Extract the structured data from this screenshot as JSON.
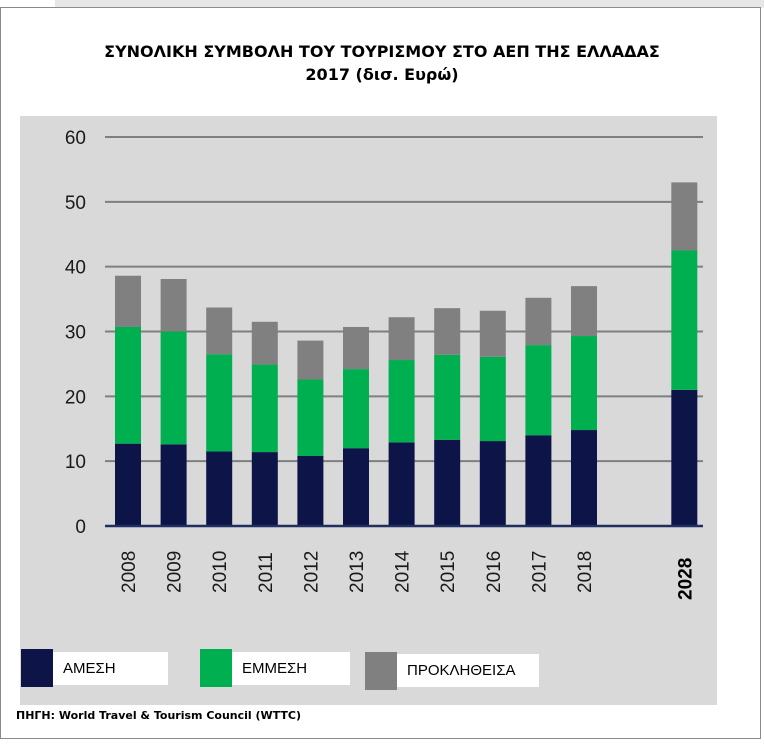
{
  "title_lines": [
    "ΣΥΝΟΛΙΚΗ ΣΥΜΒΟΛΗ ΤΟΥ ΤΟΥΡΙΣΜΟΥ ΣΤΟ ΑΕΠ ΤΗΣ ΕΛΛΑΔΑΣ",
    "2017 (δισ. Ευρώ)"
  ],
  "source": "ΠΗΓΗ: World Travel & Tourism Council (WTTC)",
  "colors": {
    "direct": "#0c1448",
    "indirect": "#00b050",
    "induced": "#808080",
    "grid": "#7f7f7f",
    "axis": "#1f2f5f"
  },
  "chart_data": {
    "type": "bar",
    "stacked": true,
    "title": "ΣΥΝΟΛΙΚΗ ΣΥΜΒΟΛΗ ΤΟΥ ΤΟΥΡΙΣΜΟΥ ΣΤΟ ΑΕΠ ΤΗΣ ΕΛΛΑΔΑΣ 2017 (δισ. Ευρώ)",
    "categories": [
      "2008",
      "2009",
      "2010",
      "2011",
      "2012",
      "2013",
      "2014",
      "2015",
      "2016",
      "2017",
      "2018",
      "2028"
    ],
    "highlight_category": "2028",
    "series": [
      {
        "name": "ΑΜΕΣΗ",
        "values": [
          12.7,
          12.6,
          11.5,
          11.4,
          10.8,
          12.0,
          12.9,
          13.3,
          13.1,
          14.0,
          14.8,
          21.0
        ]
      },
      {
        "name": "ΕΜΜΕΣΗ",
        "values": [
          18.0,
          17.4,
          15.0,
          13.5,
          11.8,
          12.2,
          12.7,
          13.1,
          13.0,
          13.9,
          14.5,
          21.5
        ]
      },
      {
        "name": "ΠΡΟΚΛΗΘΕΙΣΑ",
        "values": [
          7.9,
          8.1,
          7.2,
          6.6,
          6.0,
          6.5,
          6.6,
          7.2,
          7.1,
          7.3,
          7.7,
          10.5
        ]
      }
    ],
    "ylim": [
      0,
      60
    ],
    "yticks": [
      0,
      10,
      20,
      30,
      40,
      50,
      60
    ],
    "grid": true,
    "legend": "bottom-left",
    "xlabel": "",
    "ylabel": ""
  }
}
